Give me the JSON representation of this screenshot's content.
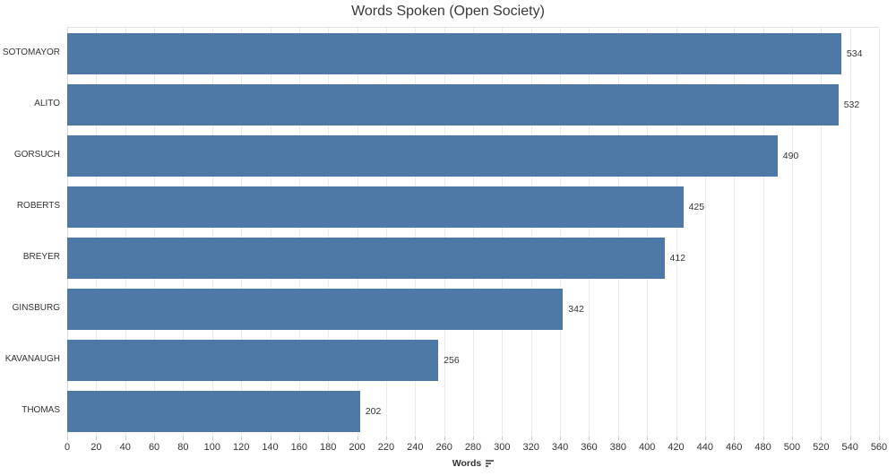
{
  "chart_data": {
    "type": "bar",
    "orientation": "horizontal",
    "title": "Words Spoken (Open Society)",
    "categories": [
      "SOTOMAYOR",
      "ALITO",
      "GORSUCH",
      "ROBERTS",
      "BREYER",
      "GINSBURG",
      "KAVANAUGH",
      "THOMAS"
    ],
    "values": [
      534,
      532,
      490,
      425,
      412,
      342,
      256,
      202
    ],
    "xlabel": "Words",
    "ylabel": "",
    "xlim": [
      0,
      560
    ],
    "xticks": [
      0,
      20,
      40,
      60,
      80,
      100,
      120,
      140,
      160,
      180,
      200,
      220,
      240,
      260,
      280,
      300,
      320,
      340,
      360,
      380,
      400,
      420,
      440,
      460,
      480,
      500,
      520,
      540,
      560
    ],
    "grid": "vertical",
    "value_labels": true,
    "legend": "none",
    "bar_color": "#4e79a7",
    "sort_indicator": "descending"
  }
}
